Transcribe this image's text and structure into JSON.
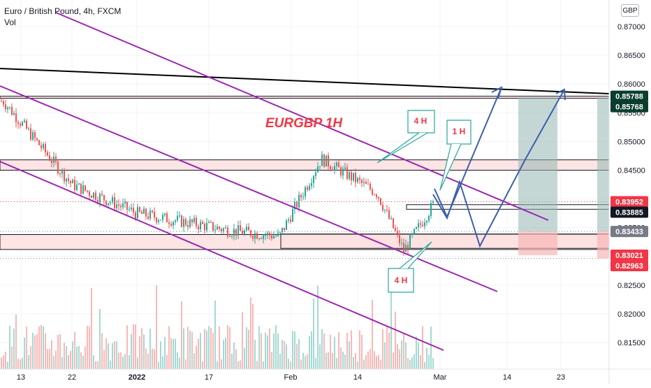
{
  "legend": {
    "symbol": "Euro / British Pound, 4h, FXCM",
    "volume_label": "Vol"
  },
  "currency": "GBP",
  "chart_data": {
    "type": "candlestick",
    "y_axis": {
      "ticks": [
        "0.87000",
        "0.86500",
        "0.86000",
        "0.85500",
        "0.85000",
        "0.84500",
        "0.84000",
        "0.83500",
        "0.83000",
        "0.82500",
        "0.82000",
        "0.81500"
      ],
      "range": [
        0.8107,
        0.8728
      ]
    },
    "x_axis": {
      "ticks": [
        "13",
        "22",
        "2022",
        "17",
        "Feb",
        "14",
        "Mar",
        "14",
        "23"
      ]
    },
    "price_path": [
      [
        "13",
        0.857
      ],
      [
        "22",
        0.8425
      ],
      [
        "2022",
        0.8375
      ],
      [
        "17",
        0.8345
      ],
      [
        "Feb",
        0.8335
      ],
      [
        "Feb",
        0.847
      ],
      [
        "14",
        0.841
      ],
      [
        "Mar",
        0.831
      ],
      [
        "Mar",
        0.839
      ]
    ],
    "price_labels": [
      {
        "text": "0.85788",
        "value": 0.85788,
        "color": "#0b3d2e"
      },
      {
        "text": "0.85768",
        "value": 0.85768,
        "color": "#0b3d2e"
      },
      {
        "text": "0.83952",
        "value": 0.83952,
        "color": "#f23645"
      },
      {
        "text": "0.83885",
        "value": 0.83885,
        "color": "#131722"
      },
      {
        "text": "0.83433",
        "value": 0.83433,
        "color": "#787b86"
      },
      {
        "text": "0.83021",
        "value": 0.83021,
        "color": "#f23645"
      },
      {
        "text": "0.82963",
        "value": 0.82963,
        "color": "#f23645"
      }
    ],
    "zones": [
      {
        "from": 0.85768,
        "to": 0.85788
      },
      {
        "from": 0.845,
        "to": 0.8468
      },
      {
        "from": 0.8312,
        "to": 0.8338
      }
    ],
    "annotations": {
      "title": "EURGBP 1H",
      "callouts": [
        "4 H",
        "1 H",
        "4 H"
      ]
    },
    "colors": {
      "channel": "#9c27b0",
      "trendline": "#000000",
      "projection": "#3d5faa",
      "callout": "#26a69a",
      "up": "#26a69a",
      "down": "#ef5350",
      "title_color": "#f23645",
      "zone_fill": "#fbe0df"
    }
  }
}
